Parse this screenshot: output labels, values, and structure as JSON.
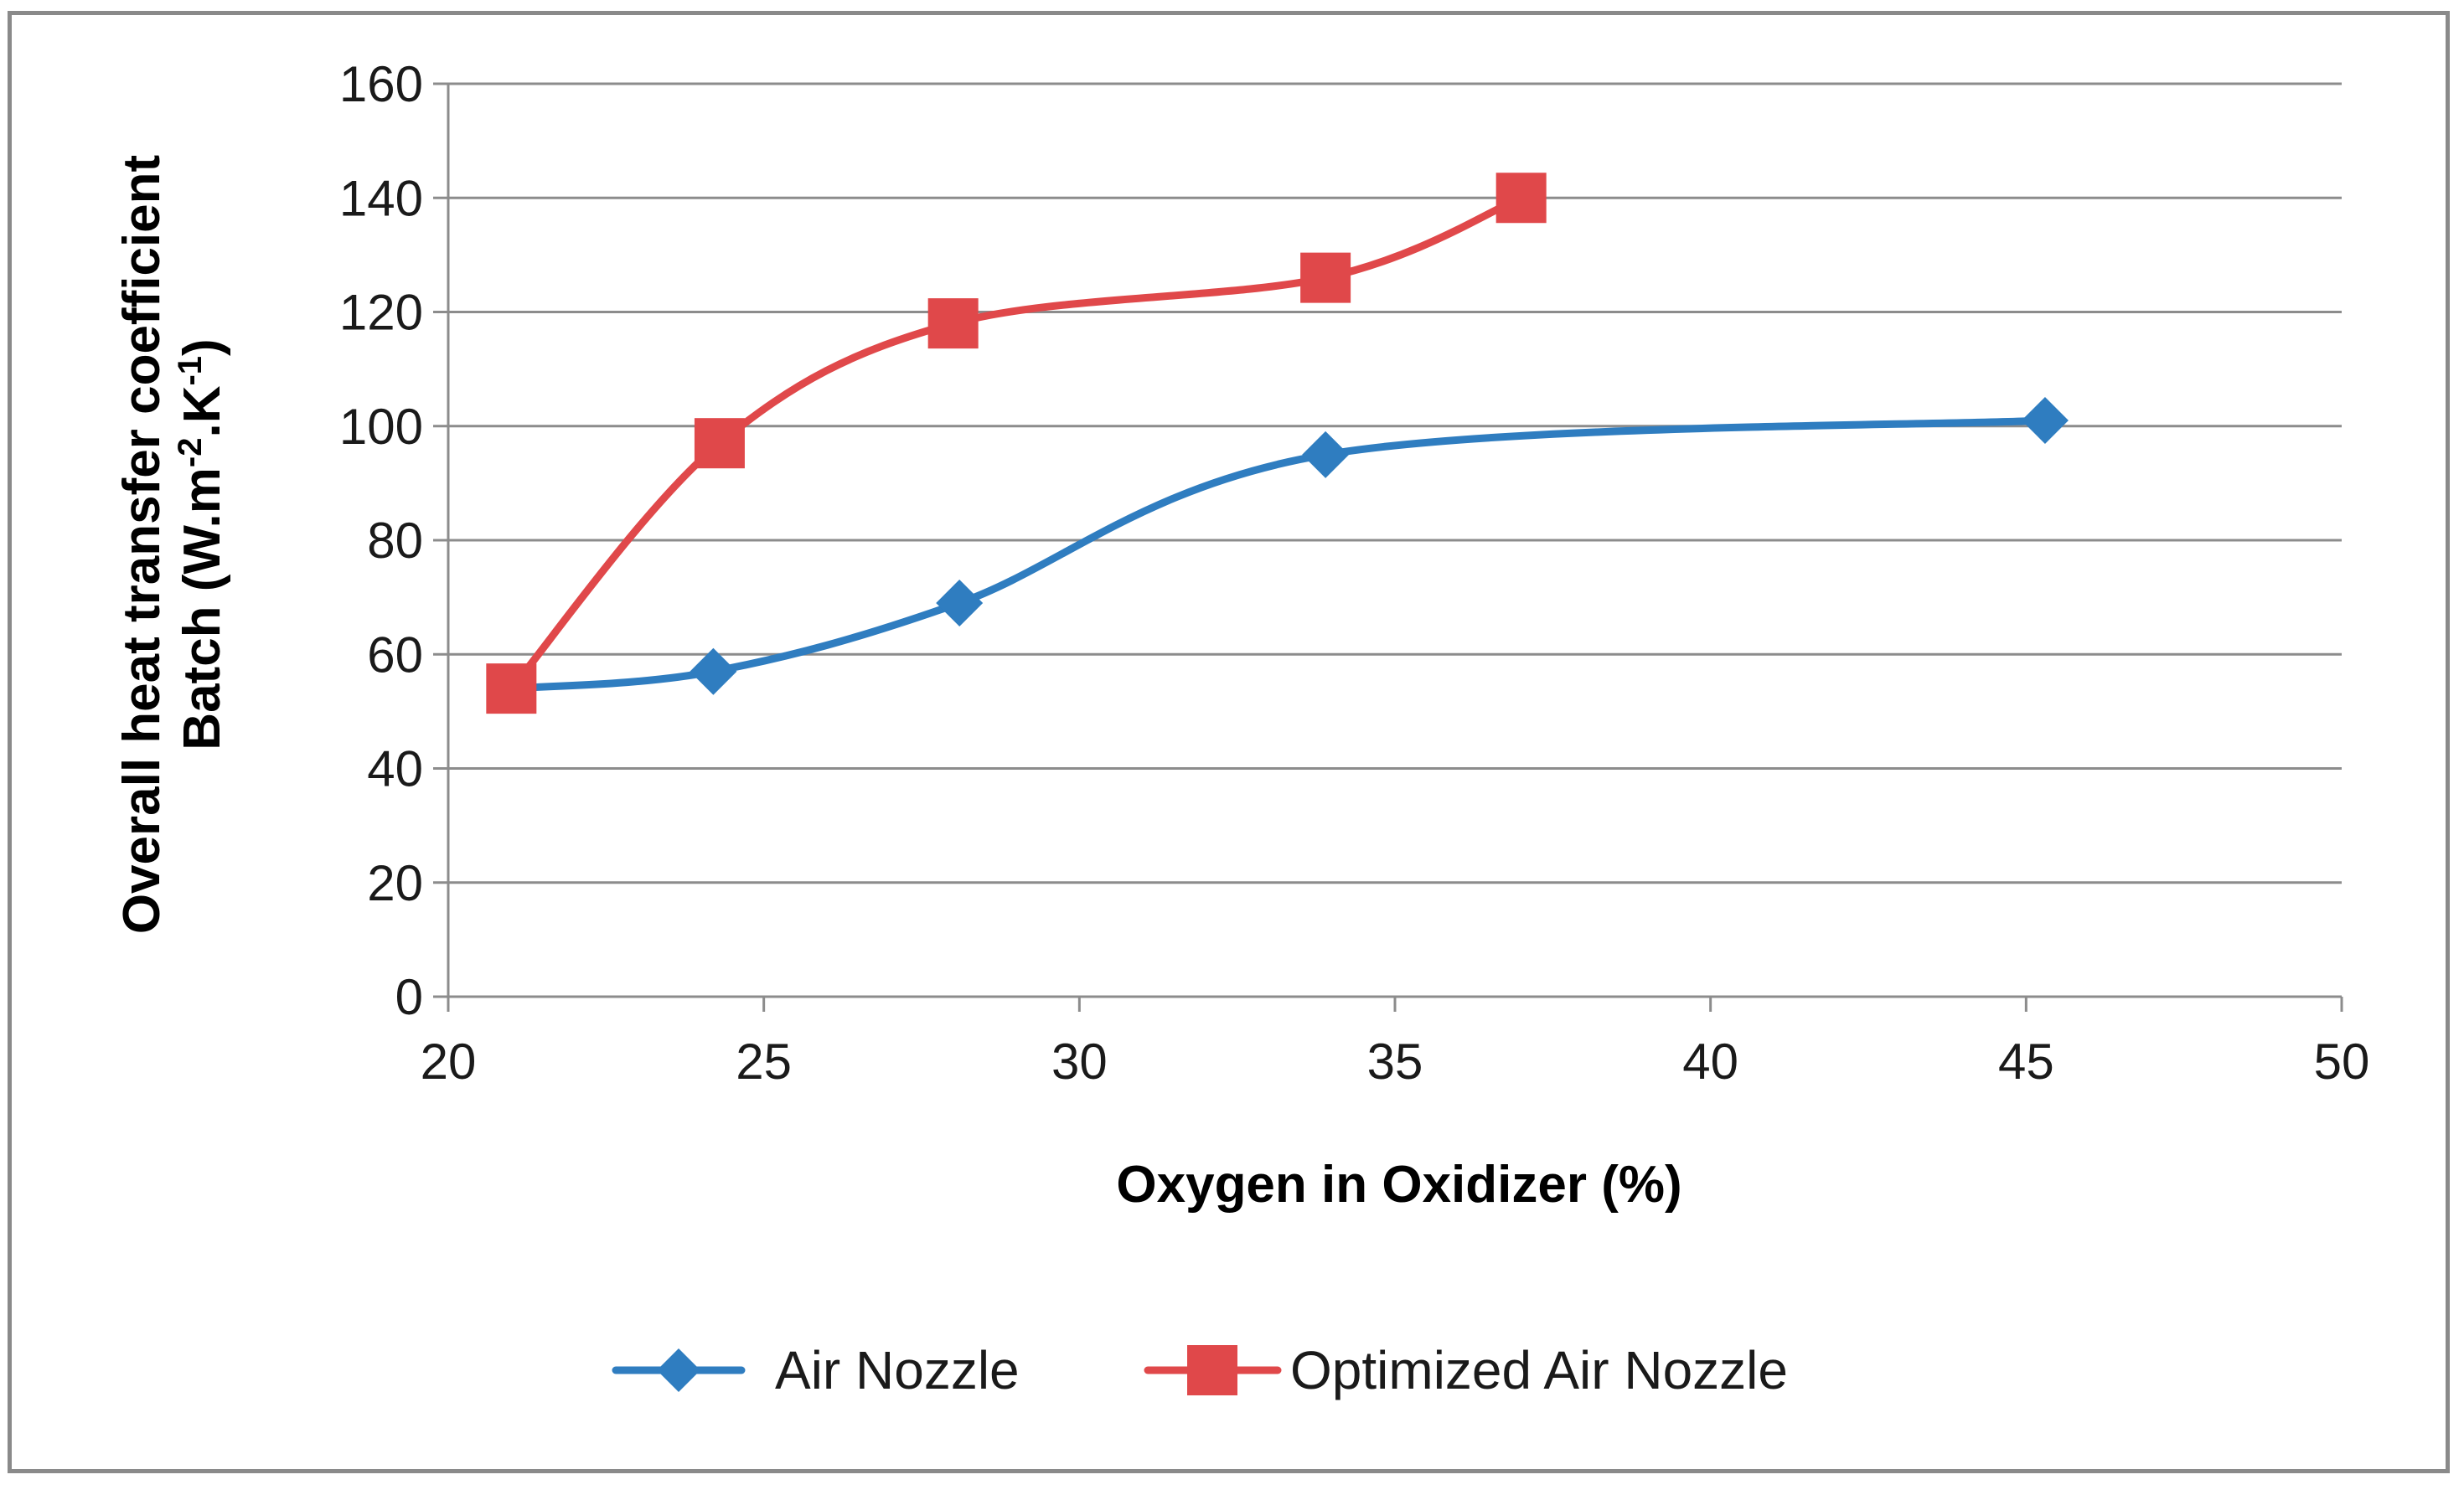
{
  "chart_data": {
    "type": "line",
    "title": "",
    "xlabel": "Oxygen in Oxidizer (%)",
    "ylabel_line1": "Overall heat transfer coefficient",
    "ylabel_line2_prefix": "Batch (W.m",
    "ylabel_sup1": "-2",
    "ylabel_mid": ".K",
    "ylabel_sup2": "-1",
    "ylabel_suffix": ")",
    "xlim": [
      20,
      50
    ],
    "ylim": [
      0,
      160
    ],
    "xticks": [
      20,
      25,
      30,
      35,
      40,
      45,
      50
    ],
    "yticks": [
      0,
      20,
      40,
      60,
      80,
      100,
      120,
      140,
      160
    ],
    "grid": "horizontal",
    "legend_position": "bottom",
    "series": [
      {
        "name": "Air Nozzle",
        "color": "#2f7dc0",
        "marker": "diamond",
        "x": [
          21.0,
          24.2,
          28.1,
          33.9,
          45.3
        ],
        "y": [
          54,
          57,
          69,
          95,
          101
        ]
      },
      {
        "name": "Optimized Air Nozzle",
        "color": "#e0484a",
        "marker": "square",
        "x": [
          21.0,
          24.3,
          28.0,
          33.9,
          37.0
        ],
        "y": [
          54,
          97,
          118,
          126,
          140
        ]
      }
    ]
  }
}
